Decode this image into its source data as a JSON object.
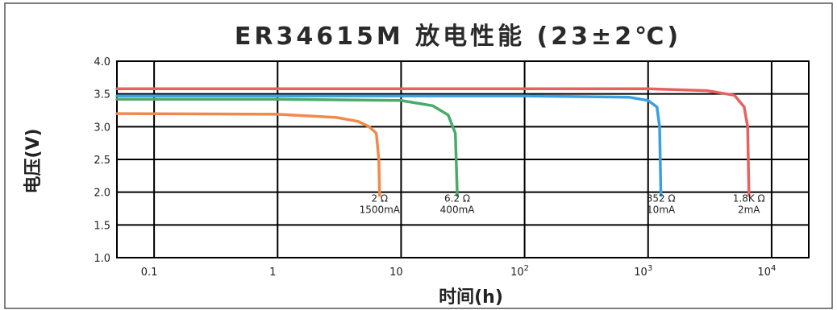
{
  "chart_data": {
    "type": "line",
    "title": "ER34615M 放电性能 (23±2℃)",
    "xlabel": "时间(h)",
    "ylabel": "电压(V)",
    "xscale": "log",
    "xlim": [
      0.05,
      20000
    ],
    "ylim": [
      1.0,
      4.0
    ],
    "grid": true,
    "x_ticks": [
      {
        "value": 0.1,
        "label": "0.1"
      },
      {
        "value": 1,
        "label": "1"
      },
      {
        "value": 10,
        "label": "10"
      },
      {
        "value": 100,
        "label": "10",
        "sup": "2"
      },
      {
        "value": 1000,
        "label": "10",
        "sup": "3"
      },
      {
        "value": 10000,
        "label": "10",
        "sup": "4"
      }
    ],
    "y_ticks": [
      "1.0",
      "1.5",
      "2.0",
      "2.5",
      "3.0",
      "3.5",
      "4.0"
    ],
    "series": [
      {
        "color": "#f08a4b",
        "x": [
          0.05,
          1,
          3,
          4.5,
          5.5,
          6.3,
          6.6,
          6.7
        ],
        "y": [
          3.2,
          3.19,
          3.14,
          3.08,
          3.0,
          2.9,
          2.5,
          1.95
        ],
        "labels": [
          "2 Ω",
          "1500mA"
        ]
      },
      {
        "color": "#4aaa6a",
        "x": [
          0.05,
          1,
          10,
          18,
          24,
          27.5,
          28.5
        ],
        "y": [
          3.42,
          3.42,
          3.4,
          3.32,
          3.18,
          2.9,
          1.95
        ],
        "labels": [
          "6.2 Ω",
          "400mA"
        ]
      },
      {
        "color": "#3b9fe0",
        "x": [
          0.05,
          10,
          100,
          700,
          1000,
          1180,
          1240,
          1270
        ],
        "y": [
          3.47,
          3.47,
          3.47,
          3.45,
          3.4,
          3.3,
          3.0,
          1.95
        ],
        "labels": [
          "352 Ω",
          "10mA"
        ]
      },
      {
        "color": "#e86060",
        "x": [
          0.05,
          10,
          1000,
          3000,
          5000,
          6000,
          6400,
          6550
        ],
        "y": [
          3.58,
          3.58,
          3.58,
          3.55,
          3.48,
          3.3,
          3.0,
          1.95
        ],
        "labels": [
          "1.8K Ω",
          "2mA"
        ]
      }
    ]
  }
}
